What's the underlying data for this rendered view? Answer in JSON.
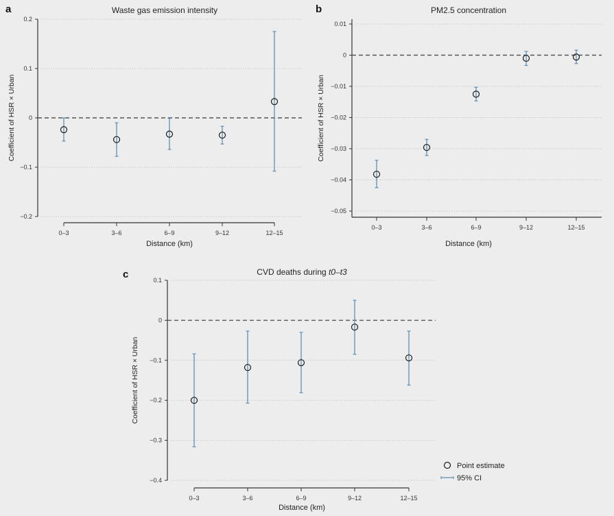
{
  "chart_data": [
    {
      "type": "scatter",
      "panel": "a",
      "title": "Waste gas emission intensity",
      "xlabel": "Distance (km)",
      "ylabel": "Coefficient of HSR × Urban",
      "categories": [
        "0–3",
        "3–6",
        "6–9",
        "9–12",
        "12–15"
      ],
      "yticks": [
        0.2,
        0.1,
        0,
        -0.1,
        -0.2
      ],
      "ytick_labels": [
        "0.2",
        "0.1",
        "0",
        "−0.1",
        "−0.2"
      ],
      "ylim": [
        -0.2,
        0.2
      ],
      "estimate": [
        -0.024,
        -0.044,
        -0.033,
        -0.035,
        0.033
      ],
      "ci_low": [
        -0.047,
        -0.078,
        -0.064,
        -0.053,
        -0.108
      ],
      "ci_high": [
        0.0,
        -0.01,
        -0.001,
        -0.017,
        0.175
      ],
      "reference_line": 0,
      "grid": true
    },
    {
      "type": "scatter",
      "panel": "b",
      "title": "PM2.5 concentration",
      "xlabel": "Distance (km)",
      "ylabel": "Coefficient of HSR × Urban",
      "categories": [
        "0–3",
        "3–6",
        "6–9",
        "9–12",
        "12–15"
      ],
      "yticks": [
        0.01,
        0,
        -0.01,
        -0.02,
        -0.03,
        -0.04,
        -0.05
      ],
      "ytick_labels": [
        "0.01",
        "0",
        "−0.01",
        "−0.02",
        "−0.03",
        "−0.04",
        "−0.05"
      ],
      "ylim": [
        -0.05,
        0.01
      ],
      "estimate": [
        -0.0382,
        -0.0296,
        -0.0125,
        -0.001,
        -0.0006
      ],
      "ci_low": [
        -0.0425,
        -0.0322,
        -0.0147,
        -0.0033,
        -0.0027
      ],
      "ci_high": [
        -0.0337,
        -0.027,
        -0.0103,
        0.0012,
        0.0016
      ],
      "reference_line": 0,
      "grid": true
    },
    {
      "type": "scatter",
      "panel": "c",
      "title": "CVD deaths during ",
      "title_italic": "t0–t3",
      "xlabel": "Distance (km)",
      "ylabel": "Coefficient of HSR × Urban",
      "categories": [
        "0–3",
        "3–6",
        "6–9",
        "9–12",
        "12–15"
      ],
      "yticks": [
        0.1,
        0,
        -0.1,
        -0.2,
        -0.3,
        -0.4
      ],
      "ytick_labels": [
        "0.1",
        "0",
        "−0.1",
        "−0.2",
        "−0.3",
        "−0.4"
      ],
      "ylim": [
        -0.4,
        0.1
      ],
      "estimate": [
        -0.2,
        -0.118,
        -0.106,
        -0.017,
        -0.094
      ],
      "ci_low": [
        -0.316,
        -0.207,
        -0.181,
        -0.085,
        -0.162
      ],
      "ci_high": [
        -0.084,
        -0.027,
        -0.03,
        0.05,
        -0.027
      ],
      "reference_line": 0,
      "grid": true,
      "legend": {
        "position": "bottom-right",
        "point_label": "Point estimate",
        "ci_label": "95% CI"
      }
    }
  ],
  "colors": {
    "ci": "#5f8fb5",
    "point": "#1a1a1a",
    "axis": "#333333",
    "reference": "#555555",
    "grid": "#c8c8c8",
    "background": "#ededed"
  }
}
